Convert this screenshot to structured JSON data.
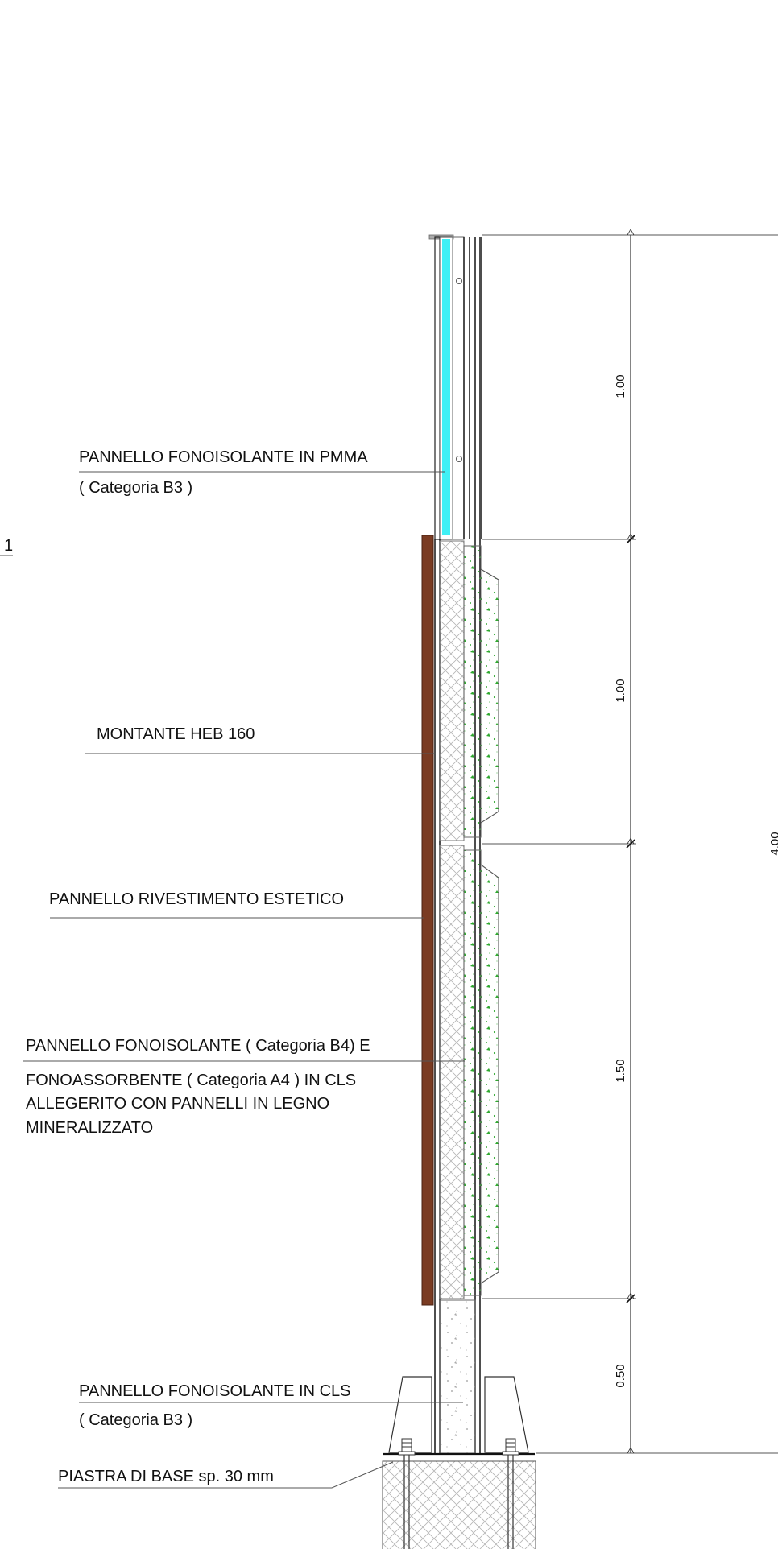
{
  "labels": {
    "pmma_line1": "PANNELLO FONOISOLANTE IN PMMA",
    "pmma_line2": "( Categoria B3 )",
    "montante": "MONTANTE HEB 160",
    "rivestimento": "PANNELLO RIVESTIMENTO ESTETICO",
    "cls_a4_line1": "PANNELLO FONOISOLANTE ( Categoria B4)  E",
    "cls_a4_line2": "FONOASSORBENTE ( Categoria A4 ) IN CLS",
    "cls_a4_line3": "ALLEGERITO CON PANNELLI IN LEGNO",
    "cls_a4_line4": "MINERALIZZATO",
    "cls_b3_line1": "PANNELLO FONOISOLANTE IN CLS",
    "cls_b3_line2": "( Categoria B3 )",
    "piastra": "PIASTRA DI BASE sp. 30 mm",
    "section_mark": "1"
  },
  "dimensions": {
    "seg1": "1.00",
    "seg2": "1.00",
    "seg3": "1.50",
    "seg4": "0.50",
    "total": "4.00"
  },
  "colors": {
    "pmma": "#3ff0f5",
    "montante": "#7a3b22",
    "aggregate": "#2fa82f",
    "line": "#333333"
  }
}
